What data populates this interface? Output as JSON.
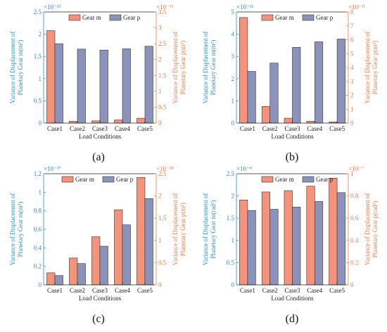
{
  "colors": {
    "left_axis": "#2a8fc5",
    "right_axis": "#f07a45",
    "gear_m": "#f4937a",
    "gear_p": "#8c93ba",
    "bar_edge": "#333333"
  },
  "chart_data": [
    {
      "type": "bar",
      "panel_label": "(a)",
      "categories": [
        "Case1",
        "Case2",
        "Case3",
        "Case4",
        "Case5"
      ],
      "xlabel": "Load Conditions",
      "ylabel_left": [
        "Variance of Displacement of",
        "Planetary Gear m(m²)"
      ],
      "ylabel_right": [
        "Variance of Displacement of",
        "Planetary Gear p(m²)"
      ],
      "left_exponent": "×10⁻³²",
      "right_exponent": "×10⁻¹³",
      "left_ylim": [
        0,
        2.5
      ],
      "right_ylim": [
        0,
        3.5
      ],
      "left_ticks": [
        "0",
        "0.5",
        "1",
        "1.5",
        "2",
        "2.5"
      ],
      "right_ticks": [
        "0",
        "0.5",
        "1",
        "1.5",
        "2",
        "2.5",
        "3",
        "3.5"
      ],
      "legend": [
        "Gear m",
        "Gear p"
      ],
      "legend_position": "top-center",
      "series": [
        {
          "name": "Gear m",
          "axis": "left",
          "values": [
            2.08,
            0.04,
            0.05,
            0.07,
            0.11
          ]
        },
        {
          "name": "Gear p",
          "axis": "right",
          "values": [
            2.5,
            2.33,
            2.3,
            2.34,
            2.42
          ]
        }
      ]
    },
    {
      "type": "bar",
      "panel_label": "(b)",
      "categories": [
        "Case1",
        "Case2",
        "Case3",
        "Case4",
        "Case5"
      ],
      "xlabel": "Load Conditions",
      "ylabel_left": [
        "Variance of Displacement of",
        "Planetary Gear m(m²)"
      ],
      "ylabel_right": [
        "Variance of Displacement of",
        "Planetary Gear p(m²)"
      ],
      "left_exponent": "×10⁻²²",
      "right_exponent": "×10⁻¹¹",
      "left_ylim": [
        0,
        5
      ],
      "right_ylim": [
        0,
        8
      ],
      "left_ticks": [
        "0",
        "1",
        "2",
        "3",
        "4",
        "5"
      ],
      "right_ticks": [
        "0",
        "1",
        "2",
        "3",
        "4",
        "5",
        "6",
        "7",
        "8"
      ],
      "legend": [
        "Gear m",
        "Gear p"
      ],
      "legend_position": "top-center",
      "series": [
        {
          "name": "Gear m",
          "axis": "left",
          "values": [
            4.75,
            0.75,
            0.22,
            0.08,
            0.05
          ]
        },
        {
          "name": "Gear p",
          "axis": "right",
          "values": [
            3.72,
            4.32,
            5.45,
            5.85,
            6.05
          ]
        }
      ]
    },
    {
      "type": "bar",
      "panel_label": "(c)",
      "categories": [
        "Case1",
        "Case2",
        "Case3",
        "Case4",
        "Case5"
      ],
      "xlabel": "Load Conditions",
      "ylabel_left": [
        "Variance of Displacement of",
        "Planetary Gear m(m²)"
      ],
      "ylabel_right": [
        "Variance of Displacement of",
        "Planetary Gear p(m²)"
      ],
      "left_exponent": "×10⁻¹⁷",
      "right_exponent": "×10⁻¹⁸",
      "left_ylim": [
        0,
        1.2
      ],
      "right_ylim": [
        0,
        2.5
      ],
      "left_ticks": [
        "0",
        "0.2",
        "0.4",
        "0.6",
        "0.8",
        "1",
        "1.2"
      ],
      "right_ticks": [
        "0",
        "0.5",
        "1",
        "1.5",
        "2",
        "2.5"
      ],
      "legend": [
        "Gear m",
        "Gear p"
      ],
      "legend_position": "top-left",
      "series": [
        {
          "name": "Gear m",
          "axis": "left",
          "values": [
            0.13,
            0.29,
            0.52,
            0.81,
            1.16
          ]
        },
        {
          "name": "Gear p",
          "axis": "right",
          "values": [
            0.21,
            0.48,
            0.87,
            1.35,
            1.94
          ]
        }
      ]
    },
    {
      "type": "bar",
      "panel_label": "(d)",
      "categories": [
        "Case1",
        "Case2",
        "Case3",
        "Case4",
        "Case5"
      ],
      "xlabel": "Load Conditions",
      "ylabel_left": [
        "Variance of Displacement of",
        "Planetary Gear m(rad²)"
      ],
      "ylabel_right": [
        "Variance of Displacement of",
        "Planetary Gear p(rad²)"
      ],
      "left_exponent": "×10⁻⁸",
      "right_exponent": "×10⁻⁷",
      "left_ylim": [
        0,
        2.5
      ],
      "right_ylim": [
        0,
        1
      ],
      "left_ticks": [
        "0",
        "0.5",
        "1",
        "1.5",
        "2",
        "2.5"
      ],
      "right_ticks": [
        "0",
        "0.2",
        "0.4",
        "0.6",
        "0.8",
        "1"
      ],
      "legend": [
        "Gear m",
        "Gear p"
      ],
      "legend_position": "top-center",
      "series": [
        {
          "name": "Gear m",
          "axis": "left",
          "values": [
            1.91,
            2.09,
            2.12,
            2.22,
            2.4
          ]
        },
        {
          "name": "Gear p",
          "axis": "right",
          "values": [
            0.67,
            0.68,
            0.7,
            0.75,
            0.83
          ]
        }
      ]
    }
  ]
}
